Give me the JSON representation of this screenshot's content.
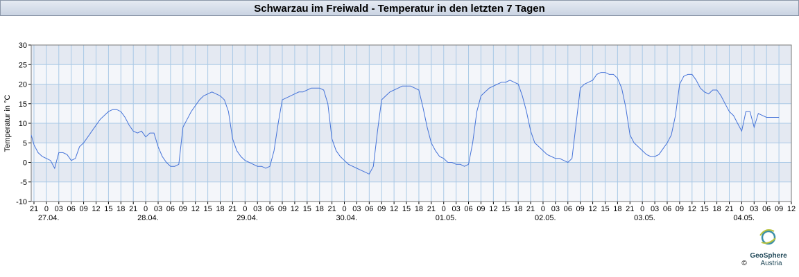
{
  "chart_data": {
    "type": "line",
    "title": "Schwarzau im Freiwald - Temperatur in den letzten 7 Tagen",
    "ylabel": "Temperatur in °C",
    "ylim": [
      -10,
      30
    ],
    "yticks": [
      -10,
      -5,
      0,
      5,
      10,
      15,
      20,
      25,
      30
    ],
    "grid": true,
    "xlim": [
      "26.04. 20:20",
      "04.05. 12:00"
    ],
    "xticks": [
      {
        "value": "26.04. 21:00",
        "label": "21"
      },
      {
        "value": "27.04. 00:00",
        "label": "0"
      },
      {
        "value": "27.04. 03:00",
        "label": "03"
      },
      {
        "value": "27.04. 06:00",
        "label": "06"
      },
      {
        "value": "27.04. 09:00",
        "label": "09"
      },
      {
        "value": "27.04. 12:00",
        "label": "12"
      },
      {
        "value": "27.04. 15:00",
        "label": "15"
      },
      {
        "value": "27.04. 18:00",
        "label": "18"
      },
      {
        "value": "27.04. 21:00",
        "label": "21"
      },
      {
        "value": "28.04. 00:00",
        "label": "0"
      },
      {
        "value": "28.04. 03:00",
        "label": "03"
      },
      {
        "value": "28.04. 06:00",
        "label": "06"
      },
      {
        "value": "28.04. 09:00",
        "label": "09"
      },
      {
        "value": "28.04. 12:00",
        "label": "12"
      },
      {
        "value": "28.04. 15:00",
        "label": "15"
      },
      {
        "value": "28.04. 18:00",
        "label": "18"
      },
      {
        "value": "28.04. 21:00",
        "label": "21"
      },
      {
        "value": "29.04. 00:00",
        "label": "0"
      },
      {
        "value": "29.04. 03:00",
        "label": "03"
      },
      {
        "value": "29.04. 06:00",
        "label": "06"
      },
      {
        "value": "29.04. 09:00",
        "label": "09"
      },
      {
        "value": "29.04. 12:00",
        "label": "12"
      },
      {
        "value": "29.04. 15:00",
        "label": "15"
      },
      {
        "value": "29.04. 18:00",
        "label": "18"
      },
      {
        "value": "29.04. 21:00",
        "label": "21"
      },
      {
        "value": "30.04. 00:00",
        "label": "0"
      },
      {
        "value": "30.04. 03:00",
        "label": "03"
      },
      {
        "value": "30.04. 06:00",
        "label": "06"
      },
      {
        "value": "30.04. 09:00",
        "label": "09"
      },
      {
        "value": "30.04. 12:00",
        "label": "12"
      },
      {
        "value": "30.04. 15:00",
        "label": "15"
      },
      {
        "value": "30.04. 18:00",
        "label": "18"
      },
      {
        "value": "30.04. 21:00",
        "label": "21"
      },
      {
        "value": "01.05. 00:00",
        "label": "0"
      },
      {
        "value": "01.05. 03:00",
        "label": "03"
      },
      {
        "value": "01.05. 06:00",
        "label": "06"
      },
      {
        "value": "01.05. 09:00",
        "label": "09"
      },
      {
        "value": "01.05. 12:00",
        "label": "12"
      },
      {
        "value": "01.05. 15:00",
        "label": "15"
      },
      {
        "value": "01.05. 18:00",
        "label": "18"
      },
      {
        "value": "01.05. 21:00",
        "label": "21"
      },
      {
        "value": "02.05. 00:00",
        "label": "0"
      },
      {
        "value": "02.05. 03:00",
        "label": "03"
      },
      {
        "value": "02.05. 06:00",
        "label": "06"
      },
      {
        "value": "02.05. 09:00",
        "label": "09"
      },
      {
        "value": "02.05. 12:00",
        "label": "12"
      },
      {
        "value": "02.05. 15:00",
        "label": "15"
      },
      {
        "value": "02.05. 18:00",
        "label": "18"
      },
      {
        "value": "02.05. 21:00",
        "label": "21"
      },
      {
        "value": "03.05. 00:00",
        "label": "0"
      },
      {
        "value": "03.05. 03:00",
        "label": "03"
      },
      {
        "value": "03.05. 06:00",
        "label": "06"
      },
      {
        "value": "03.05. 09:00",
        "label": "09"
      },
      {
        "value": "03.05. 12:00",
        "label": "12"
      },
      {
        "value": "03.05. 15:00",
        "label": "15"
      },
      {
        "value": "03.05. 18:00",
        "label": "18"
      },
      {
        "value": "03.05. 21:00",
        "label": "21"
      },
      {
        "value": "04.05. 00:00",
        "label": "0"
      },
      {
        "value": "04.05. 03:00",
        "label": "03"
      },
      {
        "value": "04.05. 06:00",
        "label": "06"
      },
      {
        "value": "04.05. 09:00",
        "label": "09"
      },
      {
        "value": "04.05. 12:00",
        "label": "12"
      }
    ],
    "xdate_labels": [
      {
        "value": "27.04. 00:00",
        "label": "27.04."
      },
      {
        "value": "28.04. 00:00",
        "label": "28.04."
      },
      {
        "value": "29.04. 00:00",
        "label": "29.04."
      },
      {
        "value": "30.04. 00:00",
        "label": "30.04."
      },
      {
        "value": "01.05. 00:00",
        "label": "01.05."
      },
      {
        "value": "02.05. 00:00",
        "label": "02.05."
      },
      {
        "value": "03.05. 00:00",
        "label": "03.05."
      },
      {
        "value": "04.05. 00:00",
        "label": "04.05."
      }
    ],
    "x": [
      "26.04. 20:20",
      "26.04. 21:00",
      "26.04. 22:00",
      "26.04. 23:00",
      "27.04. 00:00",
      "27.04. 01:00",
      "27.04. 02:00",
      "27.04. 03:00",
      "27.04. 04:00",
      "27.04. 05:00",
      "27.04. 06:00",
      "27.04. 07:00",
      "27.04. 08:00",
      "27.04. 09:00",
      "27.04. 10:00",
      "27.04. 11:00",
      "27.04. 12:00",
      "27.04. 13:00",
      "27.04. 14:00",
      "27.04. 15:00",
      "27.04. 16:00",
      "27.04. 17:00",
      "27.04. 18:00",
      "27.04. 19:00",
      "27.04. 20:00",
      "27.04. 21:00",
      "27.04. 22:00",
      "27.04. 23:00",
      "28.04. 00:00",
      "28.04. 01:00",
      "28.04. 02:00",
      "28.04. 03:00",
      "28.04. 04:00",
      "28.04. 05:00",
      "28.04. 06:00",
      "28.04. 07:00",
      "28.04. 08:00",
      "28.04. 09:00",
      "28.04. 10:00",
      "28.04. 11:00",
      "28.04. 12:00",
      "28.04. 13:00",
      "28.04. 14:00",
      "28.04. 15:00",
      "28.04. 16:00",
      "28.04. 17:00",
      "28.04. 18:00",
      "28.04. 19:00",
      "28.04. 20:00",
      "28.04. 21:00",
      "28.04. 22:00",
      "28.04. 23:00",
      "29.04. 00:00",
      "29.04. 01:00",
      "29.04. 02:00",
      "29.04. 03:00",
      "29.04. 04:00",
      "29.04. 05:00",
      "29.04. 06:00",
      "29.04. 07:00",
      "29.04. 08:00",
      "29.04. 09:00",
      "29.04. 10:00",
      "29.04. 11:00",
      "29.04. 12:00",
      "29.04. 13:00",
      "29.04. 14:00",
      "29.04. 15:00",
      "29.04. 16:00",
      "29.04. 17:00",
      "29.04. 18:00",
      "29.04. 19:00",
      "29.04. 20:00",
      "29.04. 21:00",
      "29.04. 22:00",
      "29.04. 23:00",
      "30.04. 00:00",
      "30.04. 01:00",
      "30.04. 02:00",
      "30.04. 03:00",
      "30.04. 04:00",
      "30.04. 05:00",
      "30.04. 06:00",
      "30.04. 07:00",
      "30.04. 08:00",
      "30.04. 09:00",
      "30.04. 10:00",
      "30.04. 11:00",
      "30.04. 12:00",
      "30.04. 13:00",
      "30.04. 14:00",
      "30.04. 15:00",
      "30.04. 16:00",
      "30.04. 17:00",
      "30.04. 18:00",
      "30.04. 19:00",
      "30.04. 20:00",
      "30.04. 21:00",
      "30.04. 22:00",
      "30.04. 23:00",
      "01.05. 00:00",
      "01.05. 01:00",
      "01.05. 02:00",
      "01.05. 03:00",
      "01.05. 04:00",
      "01.05. 05:00",
      "01.05. 06:00",
      "01.05. 07:00",
      "01.05. 08:00",
      "01.05. 09:00",
      "01.05. 10:00",
      "01.05. 11:00",
      "01.05. 12:00",
      "01.05. 13:00",
      "01.05. 14:00",
      "01.05. 15:00",
      "01.05. 16:00",
      "01.05. 17:00",
      "01.05. 18:00",
      "01.05. 19:00",
      "01.05. 20:00",
      "01.05. 21:00",
      "01.05. 22:00",
      "01.05. 23:00",
      "02.05. 00:00",
      "02.05. 01:00",
      "02.05. 02:00",
      "02.05. 03:00",
      "02.05. 04:00",
      "02.05. 05:00",
      "02.05. 06:00",
      "02.05. 07:00",
      "02.05. 08:00",
      "02.05. 09:00",
      "02.05. 10:00",
      "02.05. 11:00",
      "02.05. 12:00",
      "02.05. 13:00",
      "02.05. 14:00",
      "02.05. 15:00",
      "02.05. 16:00",
      "02.05. 17:00",
      "02.05. 18:00",
      "02.05. 19:00",
      "02.05. 20:00",
      "02.05. 21:00",
      "02.05. 22:00",
      "02.05. 23:00",
      "03.05. 00:00",
      "03.05. 01:00",
      "03.05. 02:00",
      "03.05. 03:00",
      "03.05. 04:00",
      "03.05. 05:00",
      "03.05. 06:00",
      "03.05. 07:00",
      "03.05. 08:00",
      "03.05. 09:00",
      "03.05. 10:00",
      "03.05. 11:00",
      "03.05. 12:00",
      "03.05. 13:00",
      "03.05. 14:00",
      "03.05. 15:00",
      "03.05. 16:00",
      "03.05. 17:00",
      "03.05. 18:00",
      "03.05. 19:00",
      "03.05. 20:00",
      "03.05. 21:00",
      "03.05. 22:00",
      "03.05. 23:00",
      "04.05. 00:00",
      "04.05. 01:00",
      "04.05. 02:00",
      "04.05. 03:00",
      "04.05. 04:00",
      "04.05. 05:00",
      "04.05. 06:00",
      "04.05. 07:00",
      "04.05. 08:00",
      "04.05. 09:00"
    ],
    "series": [
      {
        "color": "#4472d8",
        "values": [
          7,
          4.5,
          2.5,
          1.5,
          1,
          0.5,
          -1.5,
          2.5,
          2.5,
          2,
          0.5,
          1,
          4,
          5,
          6.5,
          8,
          9.5,
          11,
          12,
          13,
          13.5,
          13.5,
          13,
          11.5,
          9.5,
          8,
          7.5,
          8,
          6.5,
          7.5,
          7.5,
          4,
          1.5,
          0,
          -1,
          -1,
          -0.5,
          9,
          11,
          13,
          14.5,
          16,
          17,
          17.5,
          18,
          17.5,
          17,
          16,
          13,
          6,
          3,
          1.5,
          0.5,
          0,
          -0.5,
          -1,
          -1,
          -1.5,
          -1,
          3,
          10,
          16,
          16.5,
          17,
          17.5,
          18,
          18,
          18.5,
          19,
          19,
          19,
          18.5,
          15,
          6,
          3,
          1.5,
          0.5,
          -0.5,
          -1,
          -1.5,
          -2,
          -2.5,
          -3,
          -1,
          8,
          16,
          17,
          18,
          18.5,
          19,
          19.5,
          19.5,
          19.5,
          19,
          18.5,
          14,
          9,
          5,
          3,
          1.5,
          1,
          0,
          0,
          -0.5,
          -0.5,
          -1,
          -0.5,
          5,
          13,
          17,
          18,
          19,
          19.5,
          20,
          20.5,
          20.5,
          21,
          20.5,
          20,
          17,
          13,
          8,
          5,
          4,
          3,
          2,
          1.5,
          1,
          1,
          0.5,
          0,
          1,
          10,
          19,
          20,
          20.5,
          21,
          22.5,
          23,
          23,
          22.5,
          22.5,
          21.5,
          19,
          14,
          7,
          5,
          4,
          3,
          2,
          1.5,
          1.5,
          2,
          3.5,
          5,
          7,
          12,
          20,
          22,
          22.5,
          22.5,
          21,
          19,
          18,
          17.5,
          18.5,
          18.5,
          17,
          15,
          13,
          12,
          10,
          8,
          13,
          13,
          9,
          12.5,
          12,
          11.5,
          11.5,
          11.5,
          11.5
        ]
      }
    ]
  },
  "logo": {
    "name": "GeoSphere",
    "sub": "Austria",
    "copyright": "©"
  }
}
